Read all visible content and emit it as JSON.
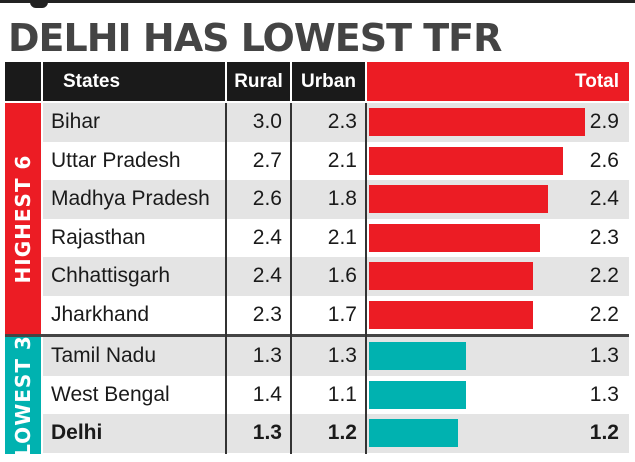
{
  "title": "DELHI HAS LOWEST TFR",
  "headers": {
    "states": "States",
    "rural": "Rural",
    "urban": "Urban",
    "total": "Total"
  },
  "groups": {
    "highest": "HIGHEST 6",
    "lowest": "LOWEST 3"
  },
  "colors": {
    "highest": "#ec1c24",
    "lowest": "#00b2b0",
    "header": "#1a1a1a"
  },
  "chart_data": {
    "type": "table",
    "title": "DELHI HAS LOWEST TFR",
    "columns": [
      "States",
      "Rural",
      "Urban",
      "Total"
    ],
    "rows": [
      {
        "state": "Bihar",
        "rural": "3.0",
        "urban": "2.3",
        "total": "2.9",
        "group": "highest"
      },
      {
        "state": "Uttar Pradesh",
        "rural": "2.7",
        "urban": "2.1",
        "total": "2.6",
        "group": "highest"
      },
      {
        "state": "Madhya Pradesh",
        "rural": "2.6",
        "urban": "1.8",
        "total": "2.4",
        "group": "highest"
      },
      {
        "state": "Rajasthan",
        "rural": "2.4",
        "urban": "2.1",
        "total": "2.3",
        "group": "highest"
      },
      {
        "state": "Chhattisgarh",
        "rural": "2.4",
        "urban": "1.6",
        "total": "2.2",
        "group": "highest"
      },
      {
        "state": "Jharkhand",
        "rural": "2.3",
        "urban": "1.7",
        "total": "2.2",
        "group": "highest"
      },
      {
        "state": "Tamil Nadu",
        "rural": "1.3",
        "urban": "1.3",
        "total": "1.3",
        "group": "lowest"
      },
      {
        "state": "West Bengal",
        "rural": "1.4",
        "urban": "1.1",
        "total": "1.3",
        "group": "lowest"
      },
      {
        "state": "Delhi",
        "rural": "1.3",
        "urban": "1.2",
        "total": "1.2",
        "group": "lowest",
        "bold": true
      }
    ],
    "bar_series": "Total",
    "bar_range": [
      0,
      2.9
    ]
  }
}
